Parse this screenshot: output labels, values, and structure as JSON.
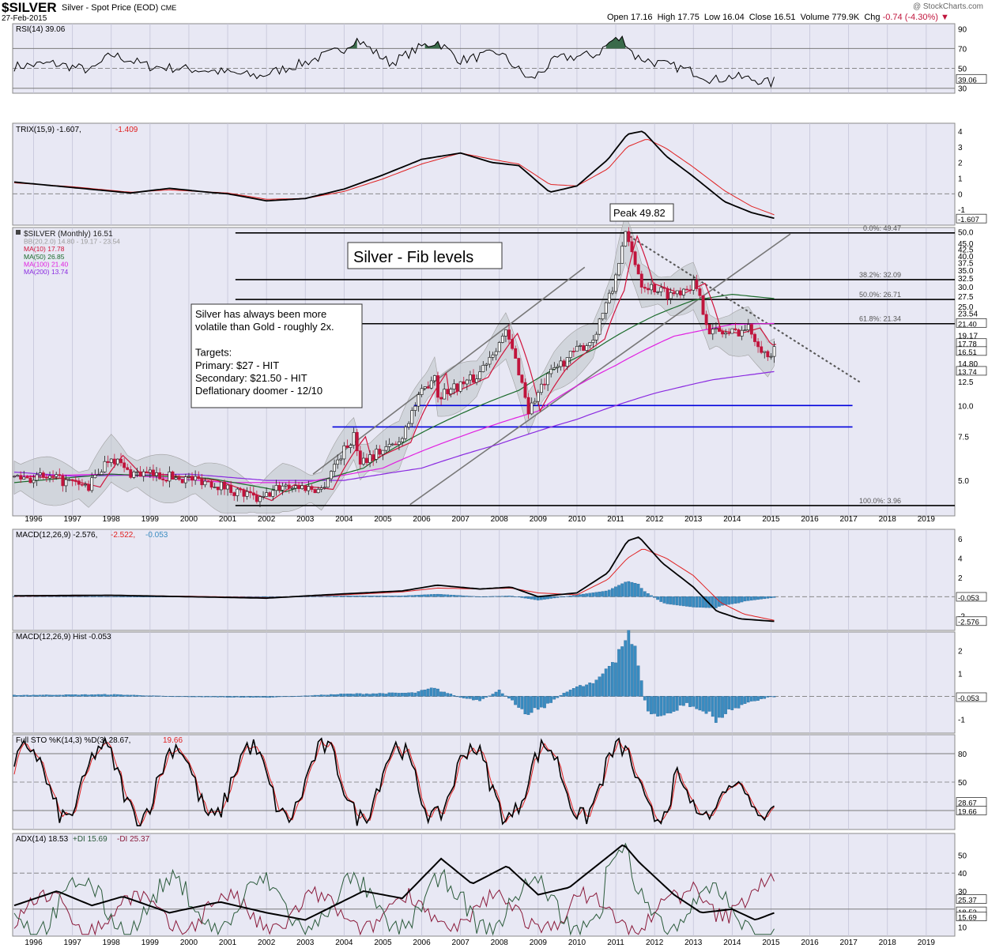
{
  "header": {
    "symbol": "$SILVER",
    "description": "Silver - Spot Price (EOD)",
    "exchange": "CME",
    "date": "27-Feb-2015",
    "watermark": "@ StockCharts.com",
    "ohlc_text": "Open 17.16  High 17.75  Low 16.04  Close 16.51  Volume 779.9K  Chg",
    "chg_text": "-0.74 (-4.30%)"
  },
  "colors": {
    "panel_bg": "#e8e8f4",
    "grid": "#c4c4d8",
    "price_up": "#202020",
    "price_down": "#c0143c",
    "ma10": "#d0143c",
    "ma50": "#1a6a2a",
    "ma100": "#e020e0",
    "ma200": "#8a2ae0",
    "bollinger_fill": "#c2c8cc",
    "hist": "#3a8cc0",
    "level_line": "#0000dd",
    "rsi_fill": "#3a6a4a"
  },
  "panels": {
    "rsi": {
      "label": "RSI(14) 39.06",
      "ticks": [
        "90",
        "70",
        "50",
        "39.06",
        "30"
      ]
    },
    "trix": {
      "label": "TRIX(15,9) -1.607,",
      "label2": "-1.409",
      "ticks": [
        "4",
        "3",
        "2",
        "1",
        "0",
        "-1",
        "-1.607"
      ]
    },
    "price": {
      "legend": [
        {
          "text": "$SILVER (Monthly) 16.51",
          "color": "#202020"
        },
        {
          "text": "BB(20,2.0) 14.80 - 19.17 - 23.54",
          "color": "#9a9a9a"
        },
        {
          "text": "MA(10) 17.78",
          "color": "#d0143c"
        },
        {
          "text": "MA(50) 26.85",
          "color": "#1a6a2a"
        },
        {
          "text": "MA(100) 21.40",
          "color": "#e020e0"
        },
        {
          "text": "MA(200) 13.74",
          "color": "#8a2ae0"
        }
      ],
      "ticks": [
        "50.0",
        "45.0",
        "42.5",
        "40.0",
        "37.5",
        "35.0",
        "32.5",
        "30.0",
        "27.5",
        "25.0",
        "23.54",
        "21.40",
        "19.17",
        "17.78",
        "16.51",
        "14.80",
        "13.74",
        "12.5",
        "10.0",
        "7.5",
        "5.0"
      ],
      "fib_labels": [
        "0.0%: 49.47",
        "38.2%: 32.09",
        "50.0%: 26.71",
        "61.8%: 21.34",
        "100.0%: 3.96"
      ],
      "title_box": "Silver - Fib levels",
      "peak_box": "Peak 49.82",
      "note_lines": [
        "Silver has always been more",
        "volatile than Gold - roughly 2x.",
        "",
        "Targets:",
        "Primary: $27 - HIT",
        "Secondary: $21.50 - HIT",
        "Deflationary doomer - 12/10"
      ]
    },
    "macd": {
      "label": "MACD(12,26,9) -2.576,",
      "label2": "-2.522,",
      "label3": "-0.053",
      "ticks": [
        "6",
        "4",
        "2",
        "-0.053",
        "-2",
        "-2.576"
      ]
    },
    "hist": {
      "label": "MACD(12,26,9) Hist -0.053",
      "ticks": [
        "2",
        "1",
        "-0.053",
        "-1"
      ]
    },
    "sto": {
      "label": "Full STO %K(14,3) %D(3) 28.67,",
      "label2": "19.66",
      "ticks": [
        "80",
        "50",
        "28.67",
        "19.66"
      ]
    },
    "adx": {
      "label": "ADX(14) 18.53",
      "label2": "+DI 15.69",
      "label3": "-DI 25.37",
      "ticks": [
        "50",
        "40",
        "30",
        "25.37",
        "18.53",
        "15.69",
        "10"
      ]
    }
  },
  "x_axis": {
    "years": [
      "1996",
      "1997",
      "1998",
      "1999",
      "2000",
      "2001",
      "2002",
      "2003",
      "2004",
      "2005",
      "2006",
      "2007",
      "2008",
      "2009",
      "2010",
      "2011",
      "2012",
      "2013",
      "2014",
      "2015",
      "2016",
      "2017",
      "2018",
      "2019"
    ]
  },
  "chart_data": {
    "type": "line",
    "title": "$SILVER (Monthly)",
    "x": [
      "1995-06",
      "1996-06",
      "1997-06",
      "1998-01",
      "1998-06",
      "1999-06",
      "2000-06",
      "2001-06",
      "2001-11",
      "2002-06",
      "2003-06",
      "2004-04",
      "2004-06",
      "2005-06",
      "2006-05",
      "2006-06",
      "2007-06",
      "2008-03",
      "2008-10",
      "2009-06",
      "2010-06",
      "2010-12",
      "2011-04",
      "2011-09",
      "2012-06",
      "2013-01",
      "2013-06",
      "2013-12",
      "2014-06",
      "2014-12",
      "2015-02"
    ],
    "series": [
      {
        "name": "$SILVER (Monthly) 16.51",
        "values": [
          5.2,
          5.1,
          4.7,
          6.3,
          5.4,
          5.2,
          5.0,
          4.4,
          4.15,
          4.8,
          4.6,
          7.5,
          6.0,
          7.1,
          13.5,
          11.0,
          13.0,
          19.5,
          9.5,
          14.0,
          18.5,
          29.0,
          48.0,
          31.0,
          28.0,
          31.0,
          20.0,
          19.5,
          20.5,
          15.5,
          16.51
        ]
      }
    ],
    "ylim": [
      3.6,
      52
    ],
    "y_scale": "log",
    "fib_levels": [
      49.47,
      32.09,
      26.71,
      21.34,
      3.96
    ],
    "support_levels": [
      10.0,
      8.2
    ],
    "last_values": {
      "open": 17.16,
      "high": 17.75,
      "low": 16.04,
      "close": 16.51,
      "volume": "779.9K",
      "chg": -0.74,
      "chg_pct": -4.3
    },
    "indicators": {
      "rsi14": 39.06,
      "trix": -1.607,
      "trix_signal": -1.409,
      "macd": -2.576,
      "macd_signal": -2.522,
      "macd_hist": -0.053,
      "sto_k": 28.67,
      "sto_d": 19.66,
      "adx": 18.53,
      "plus_di": 15.69,
      "minus_di": 25.37,
      "bb_lower": 14.8,
      "bb_mid": 19.17,
      "bb_upper": 23.54,
      "ma10": 17.78,
      "ma50": 26.85,
      "ma100": 21.4,
      "ma200": 13.74
    }
  }
}
